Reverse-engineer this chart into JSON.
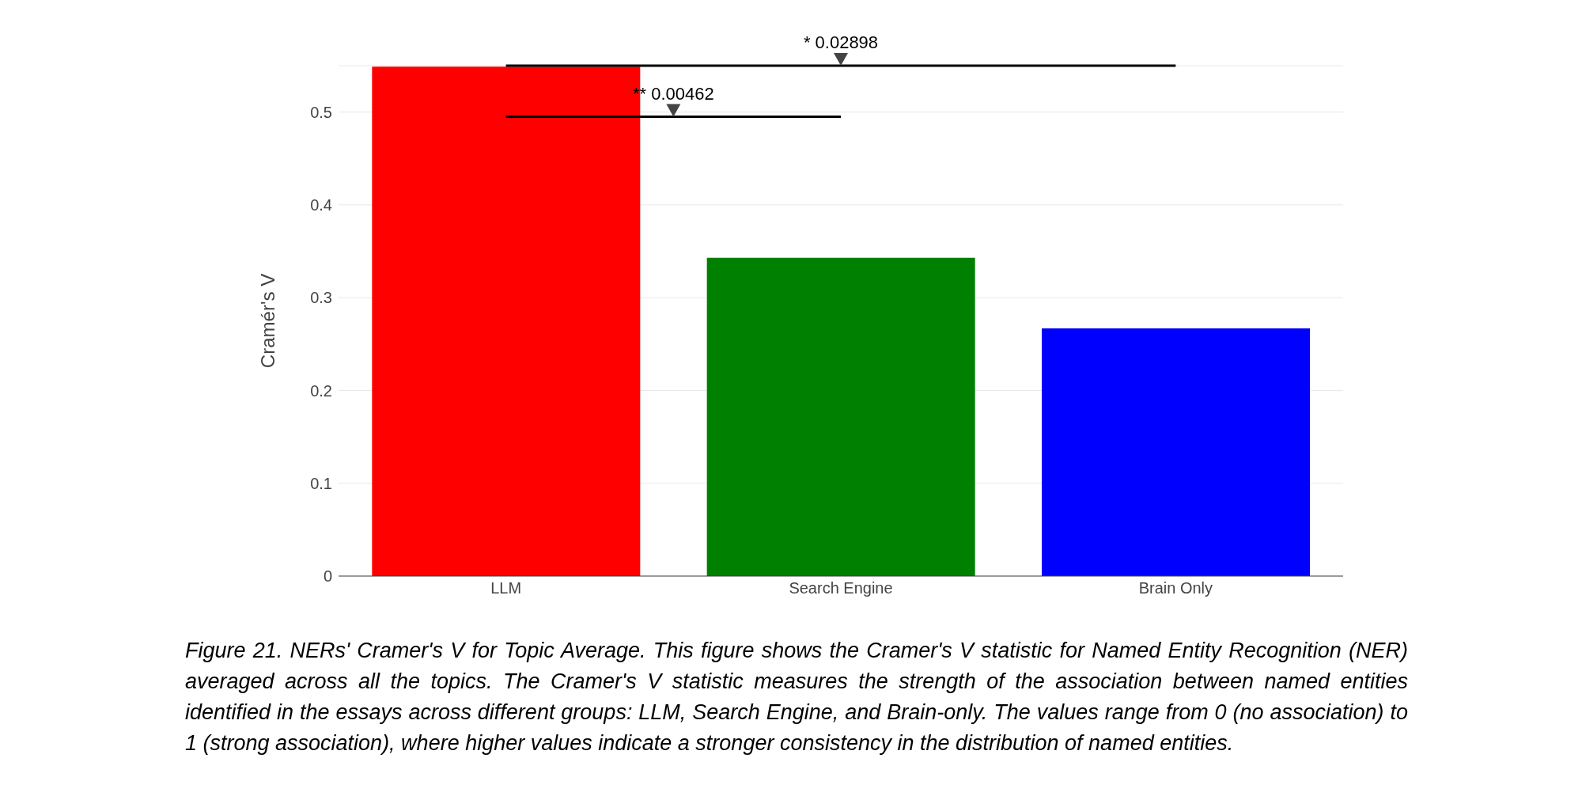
{
  "chart_data": {
    "type": "bar",
    "ylabel": "Cramér's V",
    "categories": [
      "LLM",
      "Search Engine",
      "Brain Only"
    ],
    "values": [
      0.549,
      0.343,
      0.267
    ],
    "colors": [
      "#ff0000",
      "#008000",
      "#0000ff"
    ],
    "ylim": [
      0,
      0.55
    ],
    "yticks": [
      0,
      0.1,
      0.2,
      0.3,
      0.4,
      0.5
    ],
    "grid": "y",
    "annotations": [
      "** 0.00462",
      "* 0.02898",
      "Figure 21. NERs' Cramer's V for Topic Average. This figure shows the Cramer's V statistic for Named Entity Recognition (NER) averaged across all the topics. The Cramer's V statistic measures the strength of the association between named entities identified in the essays across different groups: LLM, Search Engine, and Brain-only. The values range from 0 (no association) to 1 (strong association), where higher values indicate a stronger consistency in the distribution of named entities."
    ]
  }
}
